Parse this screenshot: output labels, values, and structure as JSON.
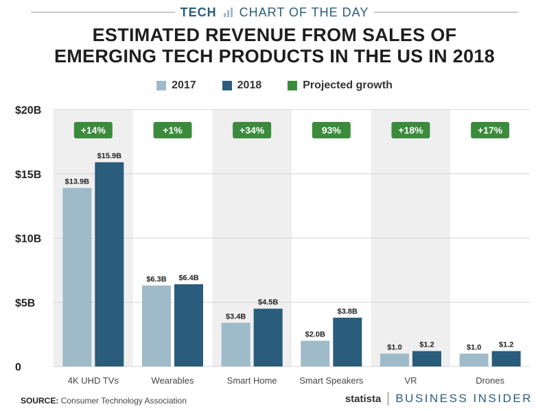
{
  "header": {
    "brand": "TECH",
    "subtitle": "CHART OF THE DAY"
  },
  "title_line1": "ESTIMATED REVENUE FROM SALES OF",
  "title_line2": "EMERGING TECH PRODUCTS IN THE US IN 2018",
  "legend": {
    "items": [
      {
        "label": "2017",
        "color": "#9fbac8"
      },
      {
        "label": "2018",
        "color": "#2a5c7b"
      },
      {
        "label": "Projected growth",
        "color": "#3c8b3c"
      }
    ]
  },
  "colors": {
    "series_2017": "#9fbac8",
    "series_2018": "#2a5c7b",
    "growth_badge": "#3c8b3c",
    "band": "#efefef",
    "grid": "#d4d4d4"
  },
  "chart_data": {
    "type": "bar",
    "title": "ESTIMATED REVENUE FROM SALES OF EMERGING TECH PRODUCTS IN THE US IN 2018",
    "xlabel": "",
    "ylabel": "",
    "ylim": [
      0,
      20
    ],
    "yticks": [
      0,
      5,
      10,
      15,
      20
    ],
    "ytick_labels": [
      "0",
      "$5B",
      "$10B",
      "$15B",
      "$20B"
    ],
    "categories": [
      "4K UHD TVs",
      "Wearables",
      "Smart Home",
      "Smart Speakers",
      "VR",
      "Drones"
    ],
    "series": [
      {
        "name": "2017",
        "values": [
          13.9,
          6.3,
          3.4,
          2.0,
          1.0,
          1.0
        ],
        "labels": [
          "$13.9B",
          "$6.3B",
          "$3.4B",
          "$2.0B",
          "$1.0",
          "$1.0"
        ]
      },
      {
        "name": "2018",
        "values": [
          15.9,
          6.4,
          4.5,
          3.8,
          1.2,
          1.2
        ],
        "labels": [
          "$15.9B",
          "$6.4B",
          "$4.5B",
          "$3.8B",
          "$1.2",
          "$1.2"
        ]
      }
    ],
    "growth": [
      "+14%",
      "+1%",
      "+34%",
      "93%",
      "+18%",
      "+17%"
    ]
  },
  "footer": {
    "source_label": "SOURCE:",
    "source_text": "Consumer Technology Association",
    "statista": "statista",
    "publisher": "BUSINESS INSIDER"
  }
}
